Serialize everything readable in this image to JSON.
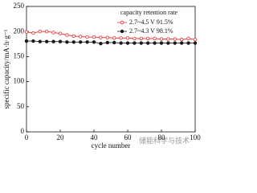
{
  "chart_data": {
    "type": "line",
    "xlabel": "cycle number",
    "ylabel": "specific capacity/mA·h·g⁻¹",
    "legend_title": "capacity retention rate",
    "legend": "upper right",
    "watermark": "储能科学与技术",
    "x": [
      0,
      4,
      8,
      12,
      16,
      20,
      24,
      28,
      32,
      36,
      40,
      44,
      48,
      52,
      56,
      60,
      64,
      68,
      72,
      76,
      80,
      84,
      88,
      92,
      96,
      100
    ],
    "series": [
      {
        "name": "2.7~4.5 V  91.5%",
        "color": "#e8262b",
        "marker": "open-circle",
        "values": [
          199,
          197,
          200,
          200,
          198,
          196,
          193,
          191,
          190,
          189,
          189,
          188,
          188,
          187,
          187,
          187,
          186,
          186,
          186,
          186,
          185,
          185,
          185,
          184,
          186,
          184
        ]
      },
      {
        "name": "2.7~4.3 V  98.1%",
        "color": "#1a1a1a",
        "marker": "filled-circle",
        "values": [
          181,
          181,
          180,
          180,
          180,
          180,
          179,
          179,
          179,
          179,
          179,
          176,
          178,
          178,
          177,
          177,
          177,
          177,
          177,
          177,
          177,
          177,
          177,
          177,
          177,
          177
        ]
      }
    ],
    "xlim": [
      0,
      100
    ],
    "xticks": [
      0,
      20,
      40,
      60,
      80,
      100
    ],
    "ylim": [
      0,
      250
    ],
    "yticks": [
      0,
      50,
      100,
      150,
      200,
      250
    ]
  }
}
